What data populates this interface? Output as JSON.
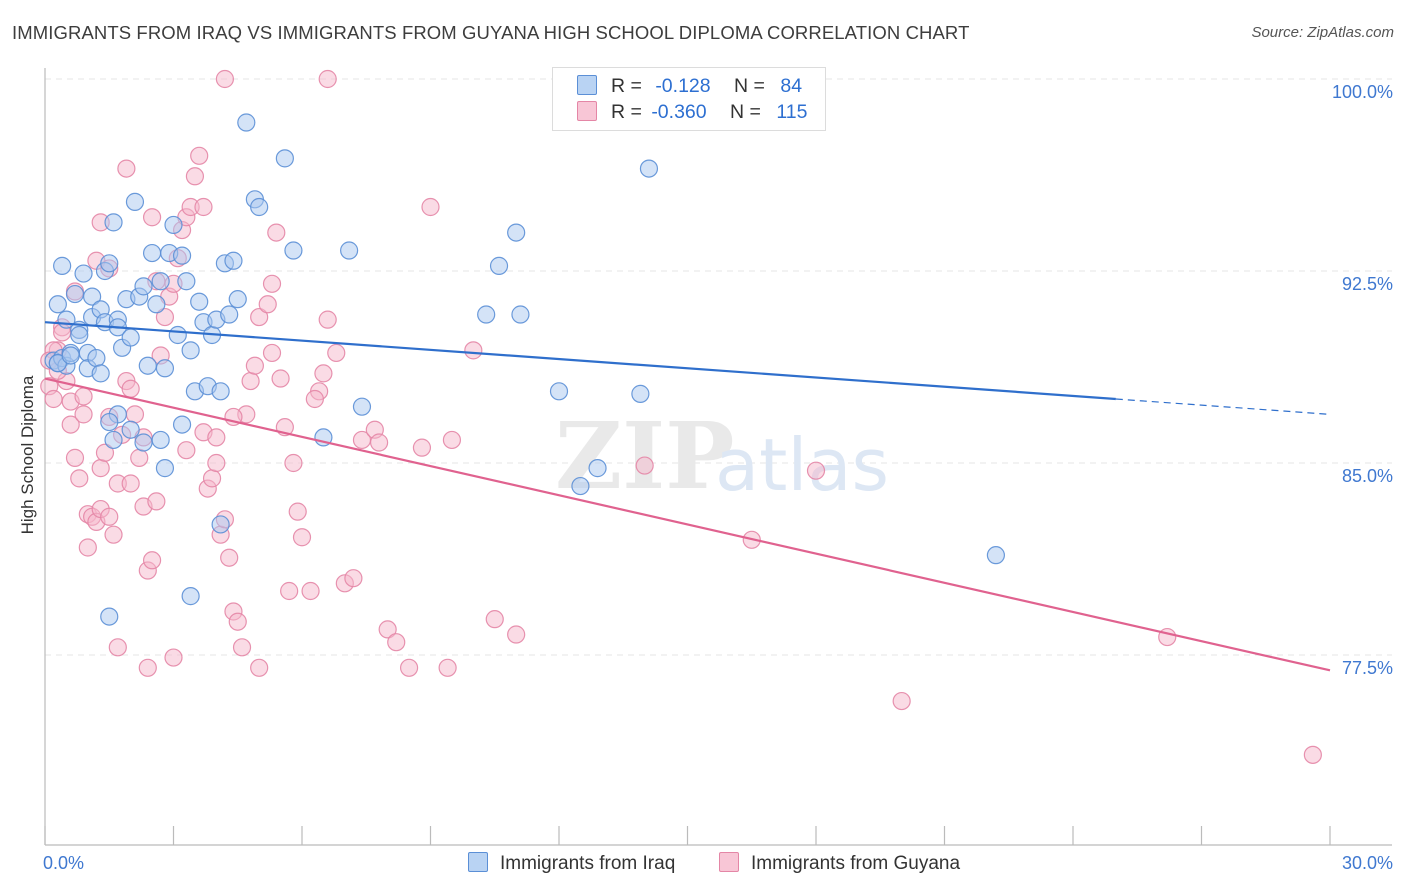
{
  "title": "IMMIGRANTS FROM IRAQ VS IMMIGRANTS FROM GUYANA HIGH SCHOOL DIPLOMA CORRELATION CHART",
  "source": "Source: ZipAtlas.com",
  "watermark": {
    "zip": "ZIP",
    "atlas": "atlas"
  },
  "legend": {
    "r_label": "R =",
    "n_label": "N =",
    "rows": [
      {
        "r": "-0.128",
        "n": "84"
      },
      {
        "r": "-0.360",
        "n": "115"
      }
    ]
  },
  "colors": {
    "iraq_fill": "#a9c8f0",
    "iraq_stroke": "#5b8fd6",
    "iraq_line": "#2f6fcc",
    "guyana_fill": "#f6b8cb",
    "guyana_stroke": "#e486a6",
    "guyana_line": "#e0628f",
    "tick_label": "#3f78d0",
    "grid": "#e6e6e6"
  },
  "chart_data": {
    "type": "scatter",
    "ylabel": "High School Diploma",
    "xlabel": "",
    "xlim": [
      0,
      30
    ],
    "ylim": [
      70.5,
      101.0
    ],
    "x_tick_labels": [
      "0.0%",
      "30.0%"
    ],
    "y_ticks": [
      77.5,
      85.0,
      92.5,
      100.0
    ],
    "y_tick_labels": [
      "77.5%",
      "85.0%",
      "92.5%",
      "100.0%"
    ],
    "grid": true,
    "series": [
      {
        "name": "Immigrants from Iraq",
        "trend": {
          "x0": 0.0,
          "y0": 90.5,
          "x1": 25.0,
          "y1": 87.5,
          "x_dash_end": 30.0,
          "y_dash_end": 86.9
        },
        "points": [
          [
            0.2,
            89.0
          ],
          [
            0.3,
            88.9
          ],
          [
            0.4,
            89.1
          ],
          [
            0.5,
            88.8
          ],
          [
            0.3,
            91.2
          ],
          [
            0.5,
            90.6
          ],
          [
            0.4,
            92.7
          ],
          [
            0.6,
            89.3
          ],
          [
            0.7,
            91.6
          ],
          [
            0.8,
            90.2
          ],
          [
            0.9,
            92.4
          ],
          [
            1.0,
            89.3
          ],
          [
            1.0,
            88.7
          ],
          [
            1.1,
            91.5
          ],
          [
            1.2,
            89.1
          ],
          [
            1.1,
            90.7
          ],
          [
            1.3,
            91.0
          ],
          [
            1.3,
            88.5
          ],
          [
            1.4,
            90.5
          ],
          [
            1.4,
            92.5
          ],
          [
            1.5,
            92.8
          ],
          [
            1.6,
            94.4
          ],
          [
            1.7,
            90.6
          ],
          [
            1.7,
            90.3
          ],
          [
            1.8,
            89.5
          ],
          [
            1.9,
            91.4
          ],
          [
            2.0,
            89.9
          ],
          [
            2.1,
            95.2
          ],
          [
            2.2,
            91.5
          ],
          [
            2.3,
            91.9
          ],
          [
            2.4,
            88.8
          ],
          [
            2.5,
            93.2
          ],
          [
            2.6,
            91.2
          ],
          [
            2.7,
            92.1
          ],
          [
            2.8,
            88.7
          ],
          [
            2.9,
            93.2
          ],
          [
            3.0,
            94.3
          ],
          [
            3.1,
            90.0
          ],
          [
            3.2,
            93.1
          ],
          [
            3.3,
            92.1
          ],
          [
            3.4,
            89.4
          ],
          [
            3.5,
            87.8
          ],
          [
            3.6,
            91.3
          ],
          [
            3.7,
            90.5
          ],
          [
            3.8,
            88.0
          ],
          [
            3.9,
            90.0
          ],
          [
            4.0,
            90.6
          ],
          [
            4.1,
            87.8
          ],
          [
            4.2,
            92.8
          ],
          [
            4.3,
            90.8
          ],
          [
            4.4,
            92.9
          ],
          [
            4.5,
            91.4
          ],
          [
            4.7,
            98.3
          ],
          [
            4.9,
            95.3
          ],
          [
            5.0,
            95.0
          ],
          [
            5.6,
            96.9
          ],
          [
            5.8,
            93.3
          ],
          [
            7.1,
            93.3
          ],
          [
            6.5,
            86.0
          ],
          [
            7.4,
            87.2
          ],
          [
            2.0,
            86.3
          ],
          [
            2.3,
            85.8
          ],
          [
            2.7,
            85.9
          ],
          [
            3.2,
            86.5
          ],
          [
            2.8,
            84.8
          ],
          [
            4.1,
            82.6
          ],
          [
            3.4,
            79.8
          ],
          [
            1.7,
            86.9
          ],
          [
            1.5,
            86.6
          ],
          [
            1.6,
            85.9
          ],
          [
            1.5,
            79.0
          ],
          [
            10.3,
            90.8
          ],
          [
            10.6,
            92.7
          ],
          [
            11.0,
            94.0
          ],
          [
            11.1,
            90.8
          ],
          [
            12.0,
            87.8
          ],
          [
            12.5,
            84.1
          ],
          [
            12.9,
            84.8
          ],
          [
            13.9,
            87.7
          ],
          [
            14.1,
            96.5
          ],
          [
            22.2,
            81.4
          ],
          [
            0.3,
            88.9
          ],
          [
            0.6,
            89.2
          ],
          [
            0.8,
            90.0
          ]
        ]
      },
      {
        "name": "Immigrants from Guyana",
        "trend": {
          "x0": 0.0,
          "y0": 88.3,
          "x1": 30.0,
          "y1": 76.9
        },
        "points": [
          [
            0.1,
            88.0
          ],
          [
            0.2,
            87.5
          ],
          [
            0.3,
            89.4
          ],
          [
            0.4,
            90.3
          ],
          [
            0.5,
            88.2
          ],
          [
            0.6,
            87.4
          ],
          [
            0.6,
            86.5
          ],
          [
            0.7,
            85.2
          ],
          [
            0.8,
            84.4
          ],
          [
            0.9,
            86.9
          ],
          [
            1.0,
            83.0
          ],
          [
            1.1,
            82.9
          ],
          [
            1.0,
            81.7
          ],
          [
            1.2,
            82.7
          ],
          [
            1.3,
            84.8
          ],
          [
            1.4,
            85.4
          ],
          [
            1.3,
            83.2
          ],
          [
            1.5,
            82.9
          ],
          [
            1.6,
            82.2
          ],
          [
            1.5,
            86.8
          ],
          [
            1.7,
            84.2
          ],
          [
            1.8,
            86.1
          ],
          [
            1.9,
            88.2
          ],
          [
            2.0,
            87.9
          ],
          [
            2.1,
            86.9
          ],
          [
            2.2,
            85.2
          ],
          [
            2.3,
            83.3
          ],
          [
            2.4,
            80.8
          ],
          [
            2.5,
            81.2
          ],
          [
            2.6,
            83.5
          ],
          [
            2.7,
            89.2
          ],
          [
            2.8,
            90.7
          ],
          [
            2.9,
            91.5
          ],
          [
            3.0,
            92.0
          ],
          [
            3.1,
            93.0
          ],
          [
            3.2,
            94.1
          ],
          [
            3.3,
            94.6
          ],
          [
            3.4,
            95.0
          ],
          [
            3.5,
            96.2
          ],
          [
            3.6,
            97.0
          ],
          [
            3.7,
            86.2
          ],
          [
            3.8,
            84.0
          ],
          [
            3.9,
            84.4
          ],
          [
            4.0,
            85.0
          ],
          [
            4.1,
            82.2
          ],
          [
            4.2,
            82.8
          ],
          [
            4.3,
            81.3
          ],
          [
            4.4,
            79.2
          ],
          [
            4.5,
            78.8
          ],
          [
            4.6,
            77.8
          ],
          [
            4.7,
            86.9
          ],
          [
            4.8,
            88.2
          ],
          [
            4.9,
            88.8
          ],
          [
            5.0,
            90.7
          ],
          [
            5.2,
            91.2
          ],
          [
            5.3,
            92.0
          ],
          [
            5.4,
            94.0
          ],
          [
            5.5,
            88.3
          ],
          [
            5.6,
            86.4
          ],
          [
            5.8,
            85.0
          ],
          [
            5.9,
            83.1
          ],
          [
            6.0,
            82.1
          ],
          [
            6.2,
            80.0
          ],
          [
            6.4,
            87.8
          ],
          [
            6.5,
            88.5
          ],
          [
            6.6,
            90.6
          ],
          [
            6.8,
            89.3
          ],
          [
            7.0,
            80.3
          ],
          [
            7.2,
            80.5
          ],
          [
            7.4,
            85.9
          ],
          [
            7.7,
            86.3
          ],
          [
            8.0,
            78.5
          ],
          [
            8.2,
            78.0
          ],
          [
            8.5,
            77.0
          ],
          [
            8.8,
            85.6
          ],
          [
            9.0,
            95.0
          ],
          [
            9.5,
            85.9
          ],
          [
            10.0,
            89.4
          ],
          [
            10.5,
            78.9
          ],
          [
            11.0,
            78.3
          ],
          [
            14.0,
            84.9
          ],
          [
            16.5,
            82.0
          ],
          [
            18.0,
            84.7
          ],
          [
            20.0,
            75.7
          ],
          [
            26.2,
            78.2
          ],
          [
            29.6,
            73.6
          ],
          [
            1.9,
            96.5
          ],
          [
            2.5,
            94.6
          ],
          [
            3.7,
            95.0
          ],
          [
            4.2,
            100.0
          ],
          [
            6.6,
            100.0
          ],
          [
            2.6,
            92.1
          ],
          [
            1.3,
            94.4
          ],
          [
            1.2,
            92.9
          ],
          [
            0.7,
            91.7
          ],
          [
            0.4,
            90.1
          ],
          [
            0.2,
            89.4
          ],
          [
            0.1,
            89.0
          ],
          [
            0.3,
            88.6
          ],
          [
            0.9,
            87.6
          ],
          [
            1.7,
            77.8
          ],
          [
            2.4,
            77.0
          ],
          [
            3.0,
            77.4
          ],
          [
            5.0,
            77.0
          ],
          [
            3.3,
            85.5
          ],
          [
            2.0,
            84.2
          ],
          [
            2.3,
            86.0
          ],
          [
            4.4,
            86.8
          ],
          [
            5.3,
            89.3
          ],
          [
            6.3,
            87.5
          ],
          [
            4.0,
            86.0
          ],
          [
            5.7,
            80.0
          ],
          [
            7.8,
            85.8
          ],
          [
            9.4,
            77.0
          ],
          [
            1.5,
            92.6
          ]
        ]
      }
    ]
  }
}
